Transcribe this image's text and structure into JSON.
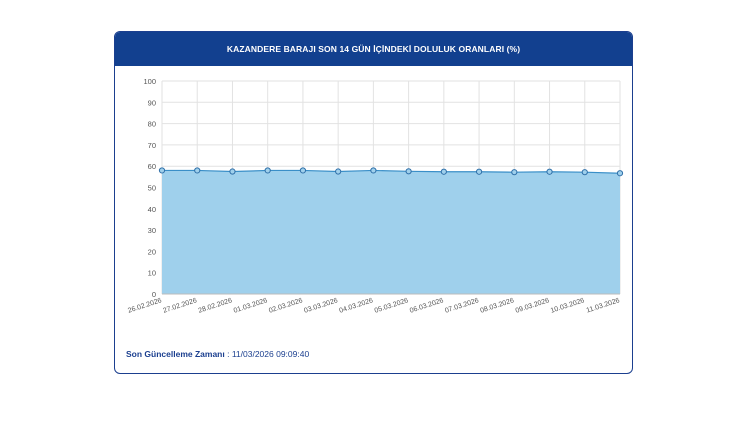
{
  "card": {
    "title": "KAZANDERE BARAJI SON 14 GÜN İÇİNDEKİ DOLULUK ORANLARI (%)",
    "update_label": "Son Güncelleme Zamanı",
    "update_separator": " : ",
    "update_value": "11/03/2026 09:09:40"
  },
  "colors": {
    "header_bg": "#12408f",
    "area_fill": "#9fd0ec",
    "line": "#3a8fc8",
    "grid": "#e2e2e2"
  },
  "chart_data": {
    "type": "area",
    "title": "KAZANDERE BARAJI SON 14 GÜN İÇİNDEKİ DOLULUK ORANLARI (%)",
    "xlabel": "",
    "ylabel": "",
    "ylim": [
      0,
      100
    ],
    "yticks": [
      0,
      10,
      20,
      30,
      40,
      50,
      60,
      70,
      80,
      90,
      100
    ],
    "grid": true,
    "categories": [
      "26.02.2026",
      "27.02.2026",
      "28.02.2026",
      "01.03.2026",
      "02.03.2026",
      "03.03.2026",
      "04.03.2026",
      "05.03.2026",
      "06.03.2026",
      "07.03.2026",
      "08.03.2026",
      "09.03.2026",
      "10.03.2026",
      "11.03.2026"
    ],
    "series": [
      {
        "values": [
          58.0,
          58.0,
          57.5,
          58.0,
          58.0,
          57.5,
          58.0,
          57.6,
          57.4,
          57.4,
          57.2,
          57.4,
          57.2,
          56.7
        ]
      }
    ]
  }
}
